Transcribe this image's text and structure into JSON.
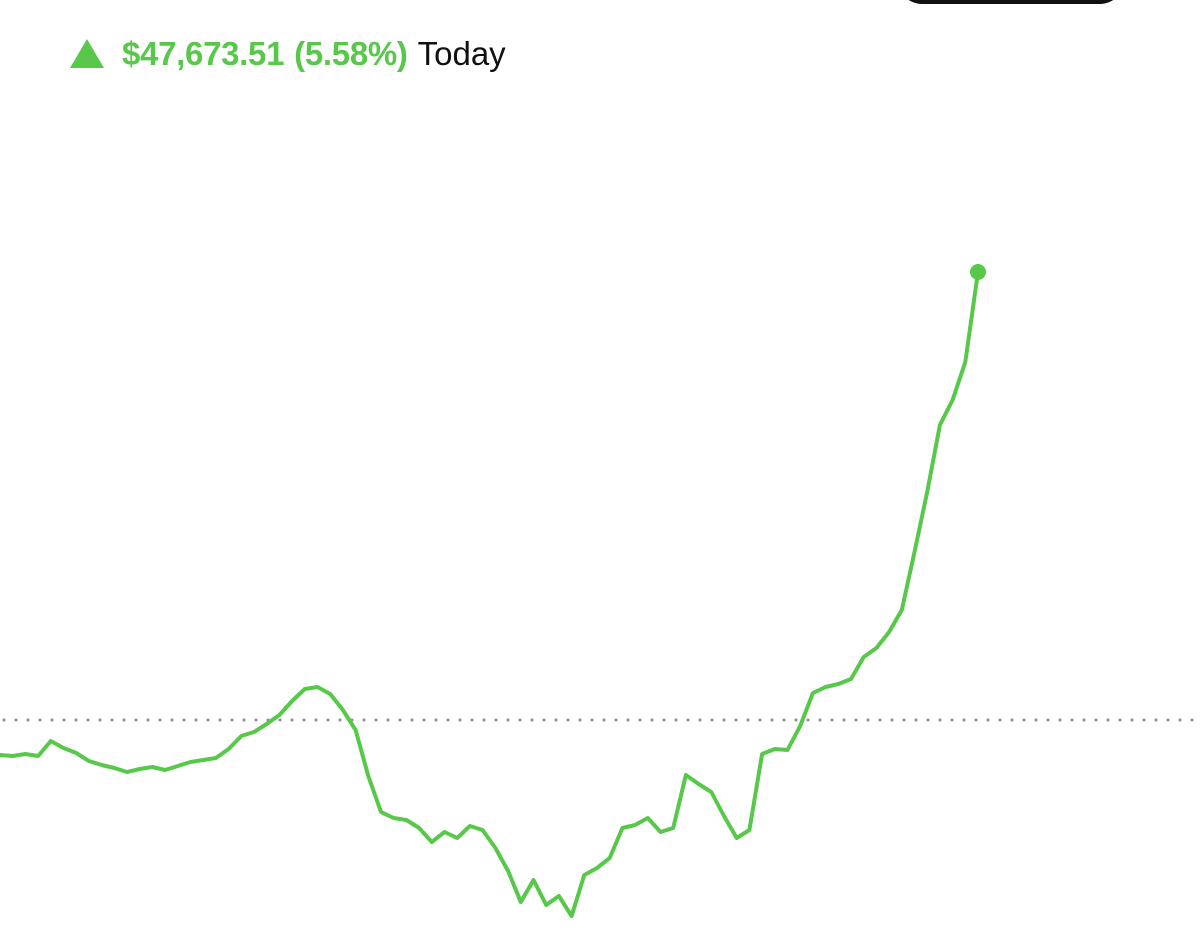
{
  "header": {
    "change_amount": "$47,673.51",
    "change_percent": "(5.58%)",
    "period": "Today",
    "direction_icon": "up-triangle-icon"
  },
  "colors": {
    "positive": "#57c84a",
    "text": "#111111",
    "baseline_dots": "#8c8c8c"
  },
  "chart_data": {
    "type": "line",
    "baseline": "previous close",
    "series": [
      {
        "values": [
          -0.35,
          -0.36,
          -0.34,
          -0.36,
          -0.21,
          -0.28,
          -0.33,
          -0.41,
          -0.45,
          -0.48,
          -0.52,
          -0.49,
          -0.47,
          -0.5,
          -0.46,
          -0.42,
          -0.4,
          -0.38,
          -0.29,
          -0.16,
          -0.12,
          -0.04,
          0.05,
          0.19,
          0.31,
          0.33,
          0.26,
          0.1,
          -0.1,
          -0.56,
          -0.92,
          -0.98,
          -1.0,
          -1.08,
          -1.22,
          -1.12,
          -1.18,
          -1.06,
          -1.1,
          -1.28,
          -1.51,
          -1.82,
          -1.6,
          -1.85,
          -1.76,
          -1.96,
          -1.55,
          -1.48,
          -1.38,
          -1.08,
          -1.05,
          -0.98,
          -1.12,
          -1.08,
          -0.55,
          -0.64,
          -0.72,
          -0.96,
          -1.18,
          -1.1,
          -0.34,
          -0.29,
          -0.3,
          -0.06,
          0.27,
          0.33,
          0.36,
          0.41,
          0.63,
          0.72,
          0.88,
          1.1,
          1.68,
          2.28,
          2.95,
          3.2,
          3.58,
          4.48
        ]
      }
    ]
  }
}
